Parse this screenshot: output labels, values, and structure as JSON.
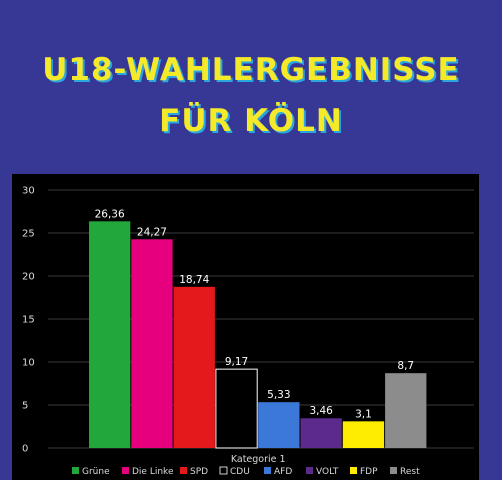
{
  "header": {
    "title_line1": "U18-WAHLERGEBNISSE",
    "title_line2": "FÜR KÖLN"
  },
  "colors": {
    "background": "#373796",
    "title": "#f5ea2a",
    "title_shadow": "#2aa7e0"
  },
  "chart_data": {
    "type": "bar",
    "categories": [
      "Kategorie 1"
    ],
    "ylim": [
      0,
      30
    ],
    "yticks": [
      0,
      5,
      10,
      15,
      20,
      25,
      30
    ],
    "grid": true,
    "legend": "bottom",
    "series": [
      {
        "name": "Grüne",
        "value": 26.36,
        "label": "26,36",
        "color": "#22a83a"
      },
      {
        "name": "Die Linke",
        "value": 24.27,
        "label": "24,27",
        "color": "#e6007e"
      },
      {
        "name": "SPD",
        "value": 18.74,
        "label": "18,74",
        "color": "#e3191b"
      },
      {
        "name": "CDU",
        "value": 9.17,
        "label": "9,17",
        "color": "#000000"
      },
      {
        "name": "AFD",
        "value": 5.33,
        "label": "5,33",
        "color": "#3c78d8"
      },
      {
        "name": "VOLT",
        "value": 3.46,
        "label": "3,46",
        "color": "#5b2a8a"
      },
      {
        "name": "FDP",
        "value": 3.1,
        "label": "3,1",
        "color": "#ffed00"
      },
      {
        "name": "Rest",
        "value": 8.7,
        "label": "8,7",
        "color": "#8c8c8c"
      }
    ]
  }
}
